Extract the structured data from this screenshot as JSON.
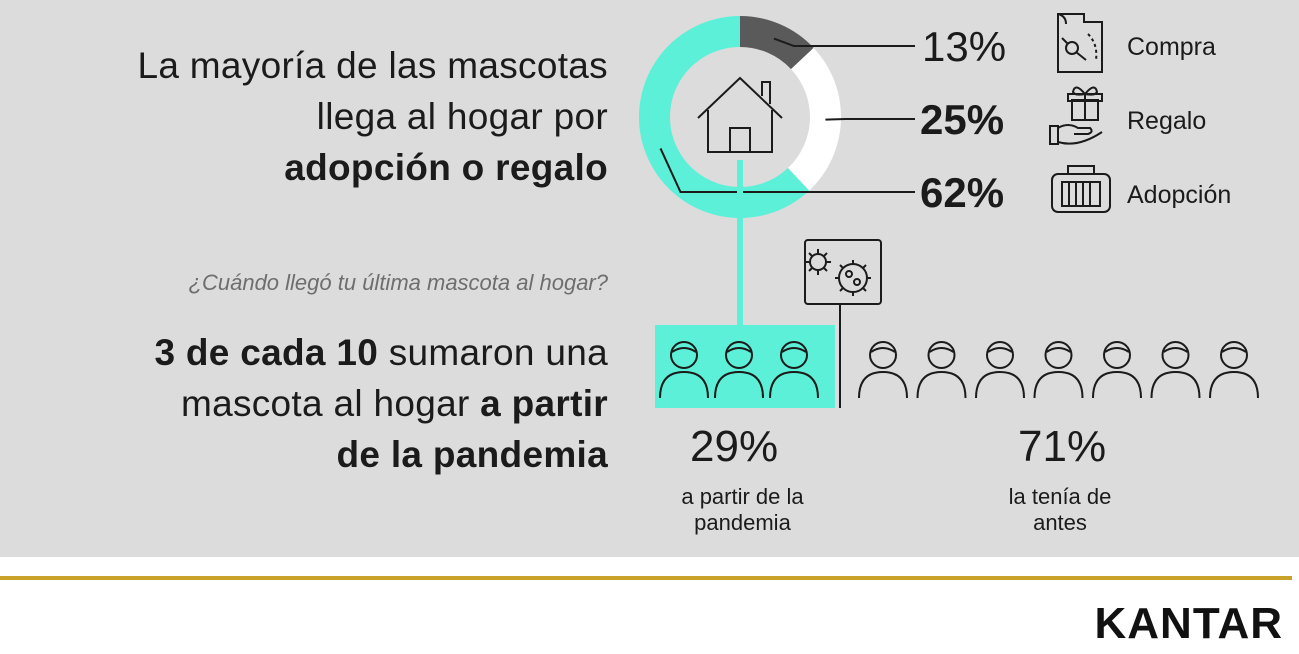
{
  "headline_top": {
    "line1": "La mayoría de las mascotas",
    "line2": "llega al hogar por",
    "line3_bold": "adopción o regalo"
  },
  "question": "¿Cuándo llegó tu última mascota al hogar?",
  "headline_bottom": {
    "line1_bold": "3 de cada 10",
    "line1_rest": " sumaron una",
    "line2_rest": "mascota al hogar ",
    "line2_bold": "a partir",
    "line3_bold": "de la pandemia"
  },
  "chart_data": [
    {
      "type": "pie",
      "style": "donut",
      "categories": [
        "Compra",
        "Regalo",
        "Adopción"
      ],
      "values": [
        13,
        25,
        62
      ],
      "value_labels": [
        "13%",
        "25%",
        "62%"
      ],
      "colors": [
        "#5a5a5a",
        "#ffffff",
        "#5cf0d8"
      ],
      "icons": [
        "receipt-icon",
        "gift-hand-icon",
        "pet-carrier-icon"
      ],
      "center_icon": "house-icon"
    },
    {
      "type": "pictogram",
      "categories": [
        "a partir de la pandemia",
        "la tenía de antes"
      ],
      "values": [
        29,
        71
      ],
      "value_labels": [
        "29%",
        "71%"
      ],
      "icon_counts": [
        3,
        7
      ],
      "icon": "person-icon",
      "highlight_color": "#5cf0d8",
      "marker_icon": "virus-icon"
    }
  ],
  "sub_labels": {
    "pandemia_line1": "a partir de la",
    "pandemia_line2": "pandemia",
    "antes_line1": "la tenía de",
    "antes_line2": "antes"
  },
  "brand": "KANTAR",
  "colors": {
    "panel_bg": "#dcdcdc",
    "accent": "#5cf0d8",
    "gold": "#c9a22c"
  }
}
